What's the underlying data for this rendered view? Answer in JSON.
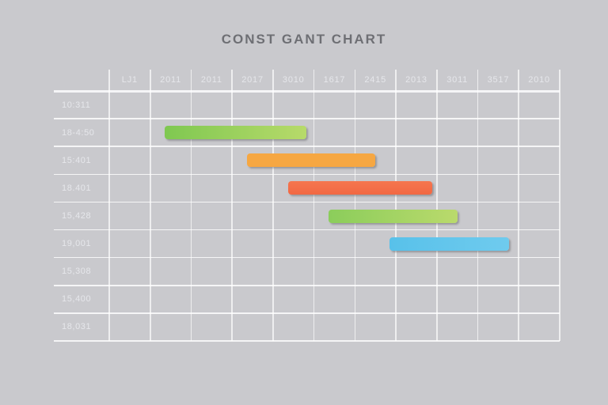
{
  "title": "CONST GANT CHART",
  "colors": {
    "background": "#c9c9cd",
    "grid_line": "#ffffff",
    "label_text": "#e6e7eb",
    "title_text": "#6e6f74",
    "bar_green_from": "#7fc851",
    "bar_green_to": "#b7da6a",
    "bar_orange": "#f6a742",
    "bar_red_from": "#f5764f",
    "bar_red_to": "#f26843",
    "bar_blue_from": "#58c1ea",
    "bar_blue_to": "#6fcbee"
  },
  "chart_data": {
    "type": "gantt",
    "title": "CONST GANT CHART",
    "legend": false,
    "grid": true,
    "columns": [
      "LJ1",
      "2011",
      "2011",
      "2017",
      "3010",
      "1617",
      "2415",
      "2013",
      "3011",
      "3517",
      "2010"
    ],
    "rows": [
      "10:311",
      "18-4:50",
      "15:401",
      "18.401",
      "15,428",
      "19,001",
      "15,308",
      "15,400",
      "18,031"
    ],
    "bars": [
      {
        "row_index": 1,
        "row_label": "18-4:50",
        "start_col": 1.35,
        "end_col": 4.82,
        "color_from": "#7fc851",
        "color_to": "#b7da6a",
        "direction": "90deg"
      },
      {
        "row_index": 2,
        "row_label": "15:401",
        "start_col": 3.37,
        "end_col": 6.5,
        "color_from": "#f6a742",
        "color_to": "#f6a742",
        "direction": "90deg"
      },
      {
        "row_index": 3,
        "row_label": "18.401",
        "start_col": 4.37,
        "end_col": 7.89,
        "color_from": "#f5764f",
        "color_to": "#f26843",
        "direction": "180deg"
      },
      {
        "row_index": 4,
        "row_label": "15,428",
        "start_col": 5.36,
        "end_col": 8.51,
        "color_from": "#8bcd5b",
        "color_to": "#bada6c",
        "direction": "90deg"
      },
      {
        "row_index": 5,
        "row_label": "19,001",
        "start_col": 6.85,
        "end_col": 9.77,
        "color_from": "#58c1ea",
        "color_to": "#6fcbee",
        "direction": "90deg"
      }
    ]
  }
}
